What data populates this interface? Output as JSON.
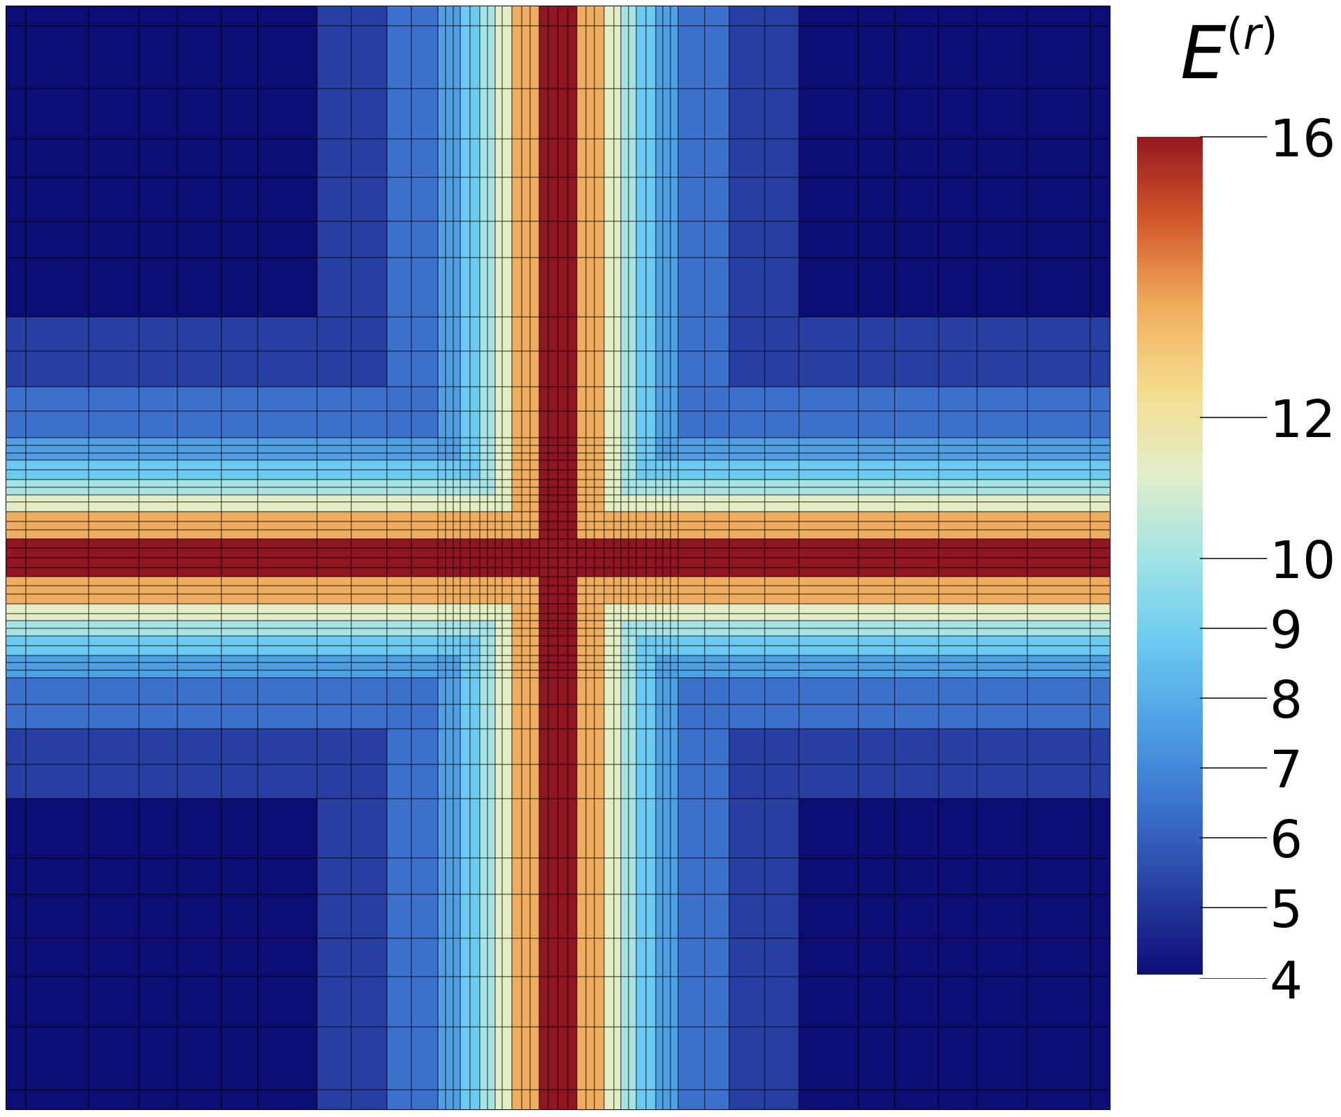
{
  "figure": {
    "colorbar": {
      "title_symbol": "E",
      "title_superscript": "r",
      "tick_labels": [
        "16",
        "12",
        "10",
        "9",
        "8",
        "7",
        "6",
        "5",
        "4"
      ],
      "ticks": [
        16,
        12,
        10,
        9,
        8,
        7,
        6,
        5,
        4
      ],
      "range": [
        4,
        16
      ],
      "colors": [
        "#0c0c78",
        "#26409e",
        "#3b72cc",
        "#4ea0e4",
        "#6ccbf0",
        "#a3e4e4",
        "#e3edc8",
        "#f4dc8c",
        "#f0ac5c",
        "#d2582a",
        "#961620"
      ]
    },
    "mesh": {
      "field": "symmetric cross pattern with maximum along the central vertical and horizontal lines",
      "max_value": 16,
      "min_value": 4,
      "colors": {
        "max": "#921621",
        "band_12": "#efad61",
        "band_10": "#e2efc5",
        "band_9": "#a6e3e5",
        "band_8": "#6ec9f0",
        "band_7": "#4e9fe4",
        "band_6": "#3d6fcc",
        "band_5": "#273fa0",
        "min": "#0d0d74",
        "grid": "#000000"
      }
    }
  }
}
